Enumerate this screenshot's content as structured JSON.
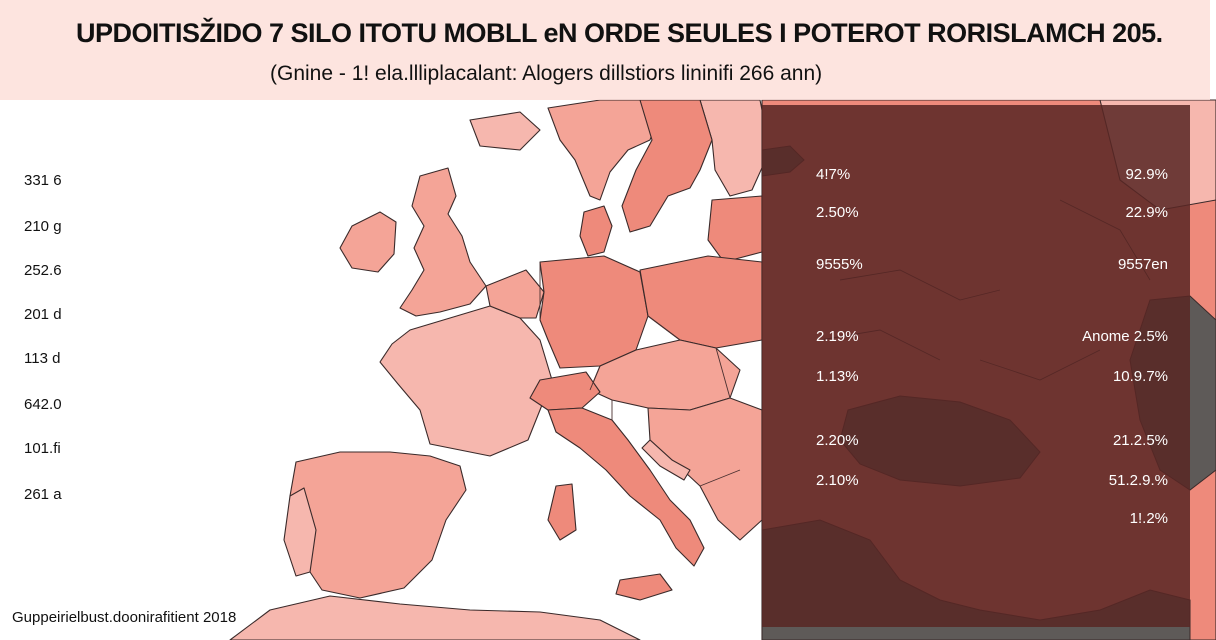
{
  "title": "UPDOITISŽIDO 7 SILO ITOTU MOBLL eN ORDE SEULES I POTEROT RORISLAMCH 205.",
  "subtitle": "(Gnine - 1! ela.llliplacalant: Alogers dillstiors lininifi 266 ann)",
  "left_labels": [
    "331 6",
    "210 g",
    "252.6",
    "201 d",
    "113 d",
    "642.0",
    "101.fi",
    "261 a"
  ],
  "panel_values_left": [
    "4!7%",
    "2.50%",
    "9555%",
    "2.19%",
    "1.13%",
    "2.20%",
    "2.10%"
  ],
  "panel_values_right": [
    "92.9%",
    "22.9%",
    "9557en",
    "Anome 2.5%",
    "10.9.7%",
    "21.2.5%",
    "51.2.9.%",
    "1!.2%"
  ],
  "source": "Guppeirielbust.doonirafitient 2018",
  "colors": {
    "land_light": "#f6b7ae",
    "land_mid": "#f4a497",
    "land_dark": "#ee8a7b",
    "overlay": "#58262",
    "dark_sea": "#5e5a58"
  }
}
